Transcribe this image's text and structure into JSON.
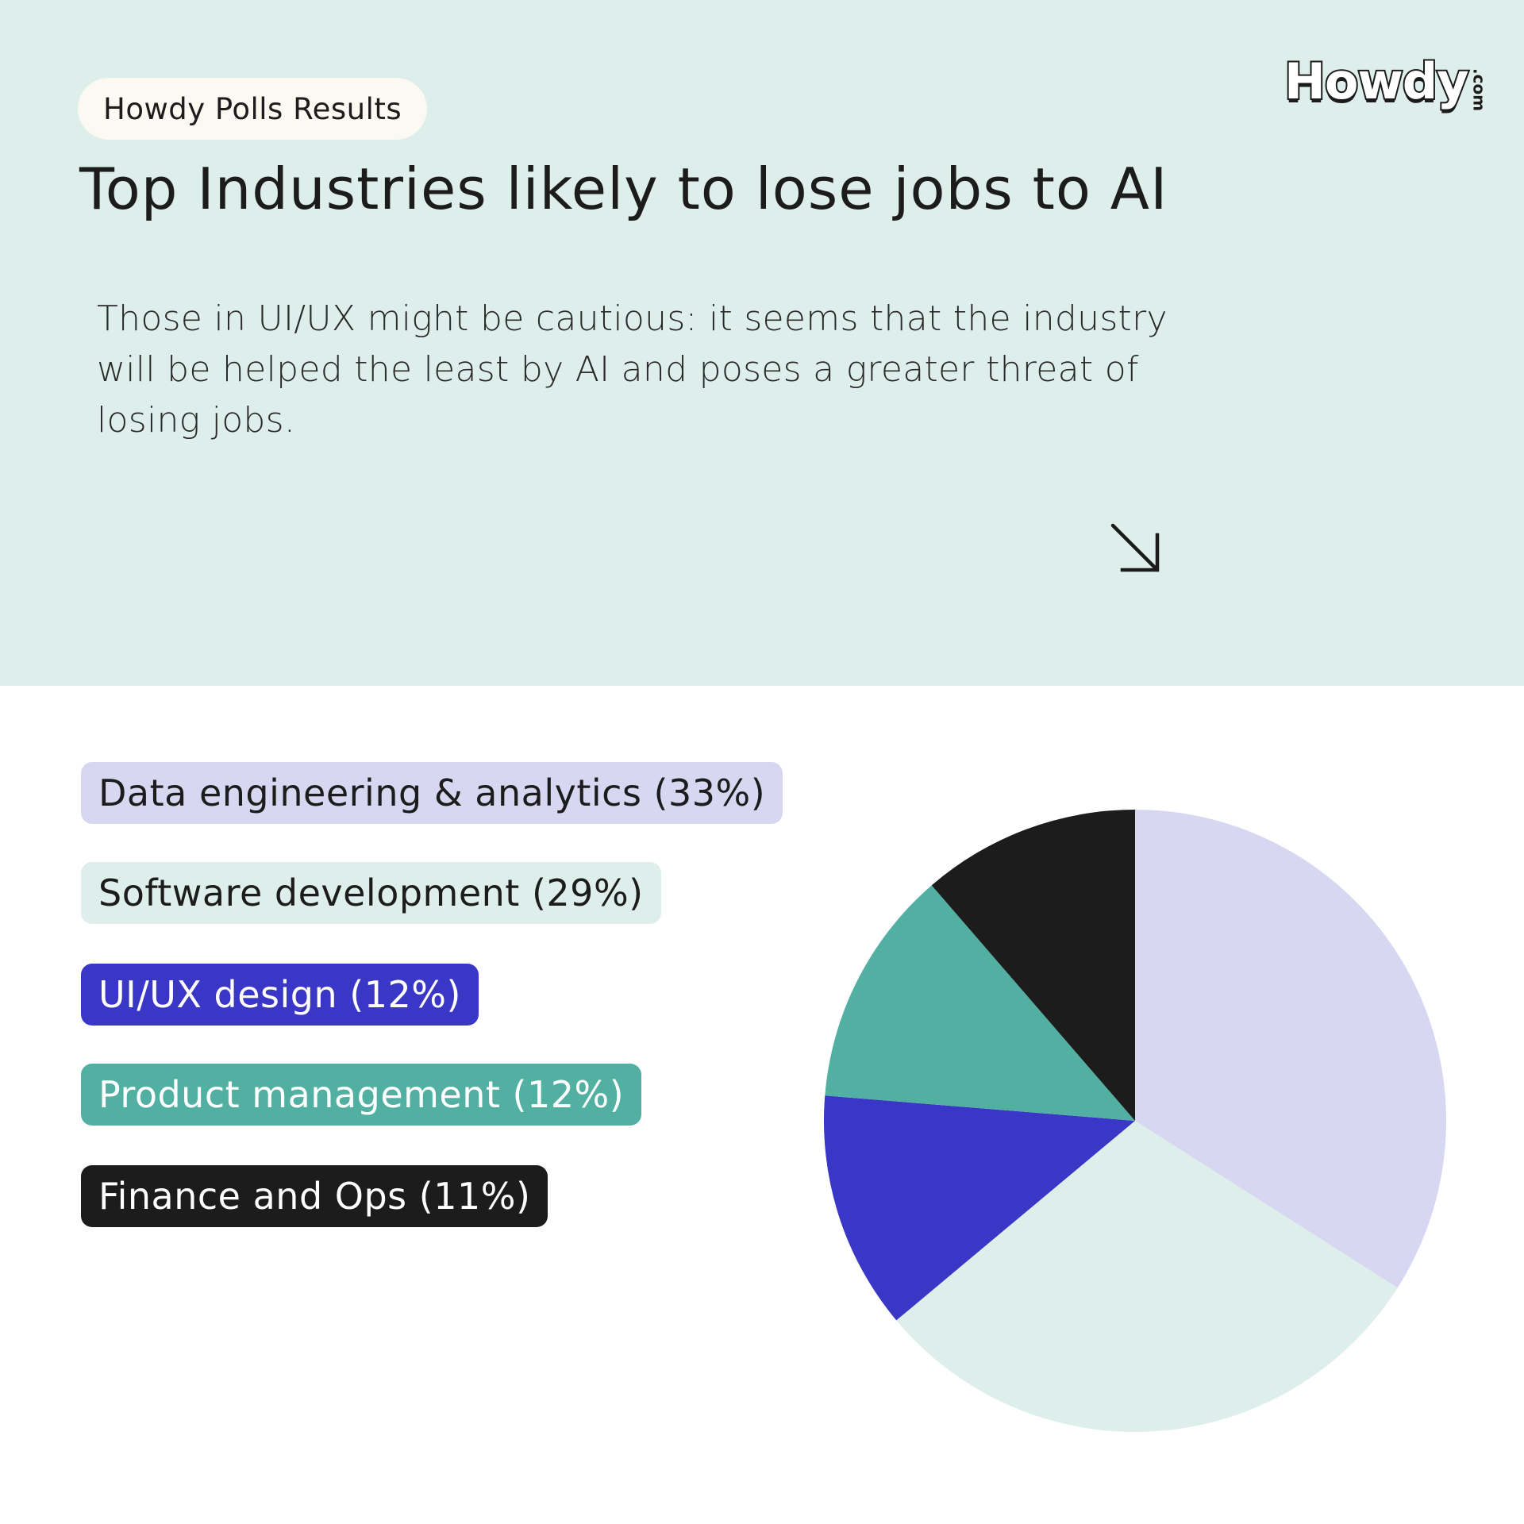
{
  "header": {
    "badge": "Howdy Polls Results",
    "logo": "Howdy",
    "logo_suffix": ".com",
    "title": "Top Industries likely to lose jobs to AI",
    "description": "Those in UI/UX might be cautious: it seems that the industry will be helped the least by AI and poses a greater threat of losing jobs."
  },
  "icons": {
    "arrow": "arrow-down-right-icon"
  },
  "colors": {
    "panel_bg": "#ddeeeb",
    "badge_bg": "#fcf8f2",
    "lavender": "#d8d7f2",
    "mint": "#ddeeeb",
    "indigo": "#3a37c6",
    "teal": "#52b0a2",
    "black": "#1c1c1c"
  },
  "chart_data": {
    "type": "pie",
    "title": "Top Industries likely to lose jobs to AI",
    "categories": [
      "Data engineering & analytics",
      "Software development",
      "UI/UX design",
      "Product management",
      "Finance and Ops"
    ],
    "values": [
      33,
      29,
      12,
      12,
      11
    ],
    "labels": [
      "Data engineering & analytics (33%)",
      "Software development (29%)",
      "UI/UX design (12%)",
      "Product management (12%)",
      "Finance and Ops (11%)"
    ],
    "colors": [
      "#d8d7f2",
      "#ddeeeb",
      "#3a37c6",
      "#52b0a2",
      "#1c1c1c"
    ],
    "label_text_colors": [
      "#1c1c1c",
      "#1c1c1c",
      "#ffffff",
      "#ffffff",
      "#ffffff"
    ],
    "start_angle_deg": 0,
    "direction": "clockwise",
    "legend_position": "left"
  }
}
